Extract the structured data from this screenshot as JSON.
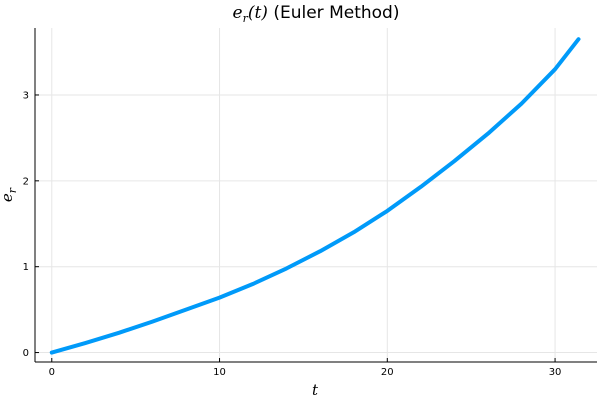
{
  "chart_data": {
    "type": "line",
    "title": {
      "math_base": "e",
      "math_sub": "r",
      "math_arg": "(t)",
      "rest": " (Euler Method)"
    },
    "xlabel": "t",
    "ylabel": {
      "base": "e",
      "sub": "r"
    },
    "xlim": [
      -1.0,
      32.5
    ],
    "ylim": [
      -0.11,
      3.78
    ],
    "xticks": [
      0,
      10,
      20,
      30
    ],
    "yticks": [
      0,
      1,
      2,
      3
    ],
    "grid": true,
    "legend": "none",
    "colors": {
      "line": "#009af9",
      "grid": "#e6e6e6",
      "axis": "#000000"
    },
    "series": [
      {
        "values_x": [
          0,
          2,
          4,
          6,
          8,
          10,
          12,
          14,
          16,
          18,
          20,
          22,
          24,
          26,
          28,
          30,
          31.4
        ],
        "values_y": [
          0,
          0.11,
          0.23,
          0.36,
          0.5,
          0.64,
          0.8,
          0.98,
          1.18,
          1.4,
          1.65,
          1.93,
          2.23,
          2.55,
          2.9,
          3.3,
          3.65
        ]
      }
    ]
  }
}
